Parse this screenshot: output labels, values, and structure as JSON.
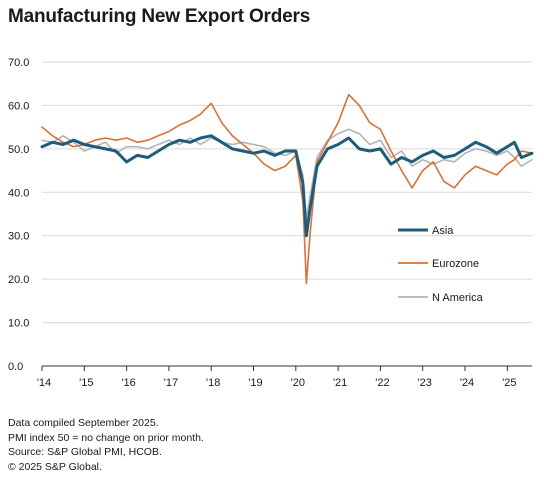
{
  "header": {
    "title": "Manufacturing New Export Orders"
  },
  "notes": [
    "Data compiled September 2025.",
    "PMI index 50 = no change on prior month.",
    "Source: S&P Global PMI, HCOB.",
    "© 2025 S&P Global."
  ],
  "chart_data": {
    "type": "line",
    "title": "Manufacturing New Export Orders",
    "xlabel": "",
    "ylabel": "",
    "x_ticks": [
      "'14",
      "'15",
      "'16",
      "'17",
      "'18",
      "'19",
      "'20",
      "'21",
      "'22",
      "'23",
      "'24",
      "'25"
    ],
    "xlim": [
      "2014-01",
      "2025-08"
    ],
    "y_ticks": [
      "0.0",
      "10.0",
      "20.0",
      "30.0",
      "40.0",
      "50.0",
      "60.0",
      "70.0"
    ],
    "ylim": [
      0,
      70
    ],
    "grid": "horizontal",
    "legend": "inside-right",
    "series": [
      {
        "name": "Asia",
        "color": "#1f5c7a",
        "points": [
          [
            "2014-01",
            50.5
          ],
          [
            "2014-04",
            51.5
          ],
          [
            "2014-07",
            51.0
          ],
          [
            "2014-10",
            52.0
          ],
          [
            "2015-01",
            51.0
          ],
          [
            "2015-04",
            50.5
          ],
          [
            "2015-07",
            50.0
          ],
          [
            "2015-10",
            49.5
          ],
          [
            "2016-01",
            47.0
          ],
          [
            "2016-04",
            48.5
          ],
          [
            "2016-07",
            48.0
          ],
          [
            "2016-10",
            49.5
          ],
          [
            "2017-01",
            51.0
          ],
          [
            "2017-04",
            52.0
          ],
          [
            "2017-07",
            51.5
          ],
          [
            "2017-10",
            52.5
          ],
          [
            "2018-01",
            53.0
          ],
          [
            "2018-04",
            51.5
          ],
          [
            "2018-07",
            50.0
          ],
          [
            "2018-10",
            49.5
          ],
          [
            "2019-01",
            49.0
          ],
          [
            "2019-04",
            49.5
          ],
          [
            "2019-07",
            48.5
          ],
          [
            "2019-10",
            49.5
          ],
          [
            "2020-01",
            49.5
          ],
          [
            "2020-03",
            42.0
          ],
          [
            "2020-04",
            30.0
          ],
          [
            "2020-05",
            36.0
          ],
          [
            "2020-07",
            46.0
          ],
          [
            "2020-10",
            50.0
          ],
          [
            "2021-01",
            51.0
          ],
          [
            "2021-04",
            52.5
          ],
          [
            "2021-07",
            50.0
          ],
          [
            "2021-10",
            49.5
          ],
          [
            "2022-01",
            50.0
          ],
          [
            "2022-04",
            46.5
          ],
          [
            "2022-07",
            48.0
          ],
          [
            "2022-10",
            47.0
          ],
          [
            "2023-01",
            48.5
          ],
          [
            "2023-04",
            49.5
          ],
          [
            "2023-07",
            48.0
          ],
          [
            "2023-10",
            48.5
          ],
          [
            "2024-01",
            50.0
          ],
          [
            "2024-04",
            51.5
          ],
          [
            "2024-07",
            50.5
          ],
          [
            "2024-10",
            49.0
          ],
          [
            "2025-01",
            50.5
          ],
          [
            "2025-03",
            51.5
          ],
          [
            "2025-05",
            48.0
          ],
          [
            "2025-08",
            49.0
          ]
        ]
      },
      {
        "name": "Eurozone",
        "color": "#d5733a",
        "points": [
          [
            "2014-01",
            55.0
          ],
          [
            "2014-04",
            53.0
          ],
          [
            "2014-07",
            51.5
          ],
          [
            "2014-10",
            50.5
          ],
          [
            "2015-01",
            51.0
          ],
          [
            "2015-04",
            52.0
          ],
          [
            "2015-07",
            52.5
          ],
          [
            "2015-10",
            52.0
          ],
          [
            "2016-01",
            52.5
          ],
          [
            "2016-04",
            51.5
          ],
          [
            "2016-07",
            52.0
          ],
          [
            "2016-10",
            53.0
          ],
          [
            "2017-01",
            54.0
          ],
          [
            "2017-04",
            55.5
          ],
          [
            "2017-07",
            56.5
          ],
          [
            "2017-10",
            58.0
          ],
          [
            "2018-01",
            60.5
          ],
          [
            "2018-04",
            56.0
          ],
          [
            "2018-07",
            53.0
          ],
          [
            "2018-10",
            51.0
          ],
          [
            "2019-01",
            49.0
          ],
          [
            "2019-04",
            46.5
          ],
          [
            "2019-07",
            45.0
          ],
          [
            "2019-10",
            46.0
          ],
          [
            "2020-01",
            48.5
          ],
          [
            "2020-03",
            38.0
          ],
          [
            "2020-04",
            19.0
          ],
          [
            "2020-05",
            30.0
          ],
          [
            "2020-07",
            47.0
          ],
          [
            "2020-10",
            51.5
          ],
          [
            "2021-01",
            56.0
          ],
          [
            "2021-04",
            62.5
          ],
          [
            "2021-07",
            60.0
          ],
          [
            "2021-10",
            56.0
          ],
          [
            "2022-01",
            54.5
          ],
          [
            "2022-04",
            49.5
          ],
          [
            "2022-07",
            45.0
          ],
          [
            "2022-10",
            41.0
          ],
          [
            "2023-01",
            45.0
          ],
          [
            "2023-04",
            47.0
          ],
          [
            "2023-07",
            42.5
          ],
          [
            "2023-10",
            41.0
          ],
          [
            "2024-01",
            44.0
          ],
          [
            "2024-04",
            46.0
          ],
          [
            "2024-07",
            45.0
          ],
          [
            "2024-10",
            44.0
          ],
          [
            "2025-01",
            46.5
          ],
          [
            "2025-03",
            47.5
          ],
          [
            "2025-05",
            49.5
          ],
          [
            "2025-08",
            49.0
          ]
        ]
      },
      {
        "name": "N America",
        "color": "#b4b4b4",
        "points": [
          [
            "2014-01",
            52.0
          ],
          [
            "2014-04",
            51.5
          ],
          [
            "2014-07",
            53.0
          ],
          [
            "2014-10",
            51.5
          ],
          [
            "2015-01",
            49.5
          ],
          [
            "2015-04",
            50.5
          ],
          [
            "2015-07",
            51.5
          ],
          [
            "2015-10",
            49.0
          ],
          [
            "2016-01",
            50.5
          ],
          [
            "2016-04",
            50.5
          ],
          [
            "2016-07",
            50.0
          ],
          [
            "2016-10",
            51.0
          ],
          [
            "2017-01",
            52.0
          ],
          [
            "2017-04",
            51.0
          ],
          [
            "2017-07",
            52.5
          ],
          [
            "2017-10",
            51.0
          ],
          [
            "2018-01",
            52.5
          ],
          [
            "2018-04",
            51.5
          ],
          [
            "2018-07",
            51.0
          ],
          [
            "2018-10",
            51.5
          ],
          [
            "2019-01",
            51.0
          ],
          [
            "2019-04",
            50.5
          ],
          [
            "2019-07",
            49.0
          ],
          [
            "2019-10",
            48.5
          ],
          [
            "2020-01",
            49.5
          ],
          [
            "2020-03",
            44.0
          ],
          [
            "2020-04",
            34.0
          ],
          [
            "2020-05",
            39.0
          ],
          [
            "2020-07",
            48.0
          ],
          [
            "2020-10",
            52.0
          ],
          [
            "2021-01",
            53.5
          ],
          [
            "2021-04",
            54.5
          ],
          [
            "2021-07",
            53.5
          ],
          [
            "2021-10",
            51.0
          ],
          [
            "2022-01",
            52.0
          ],
          [
            "2022-04",
            48.0
          ],
          [
            "2022-07",
            49.5
          ],
          [
            "2022-10",
            46.0
          ],
          [
            "2023-01",
            47.5
          ],
          [
            "2023-04",
            46.5
          ],
          [
            "2023-07",
            47.5
          ],
          [
            "2023-10",
            47.0
          ],
          [
            "2024-01",
            49.0
          ],
          [
            "2024-04",
            50.0
          ],
          [
            "2024-07",
            49.5
          ],
          [
            "2024-10",
            48.5
          ],
          [
            "2025-01",
            49.5
          ],
          [
            "2025-03",
            48.0
          ],
          [
            "2025-05",
            46.0
          ],
          [
            "2025-08",
            47.5
          ]
        ]
      }
    ]
  }
}
